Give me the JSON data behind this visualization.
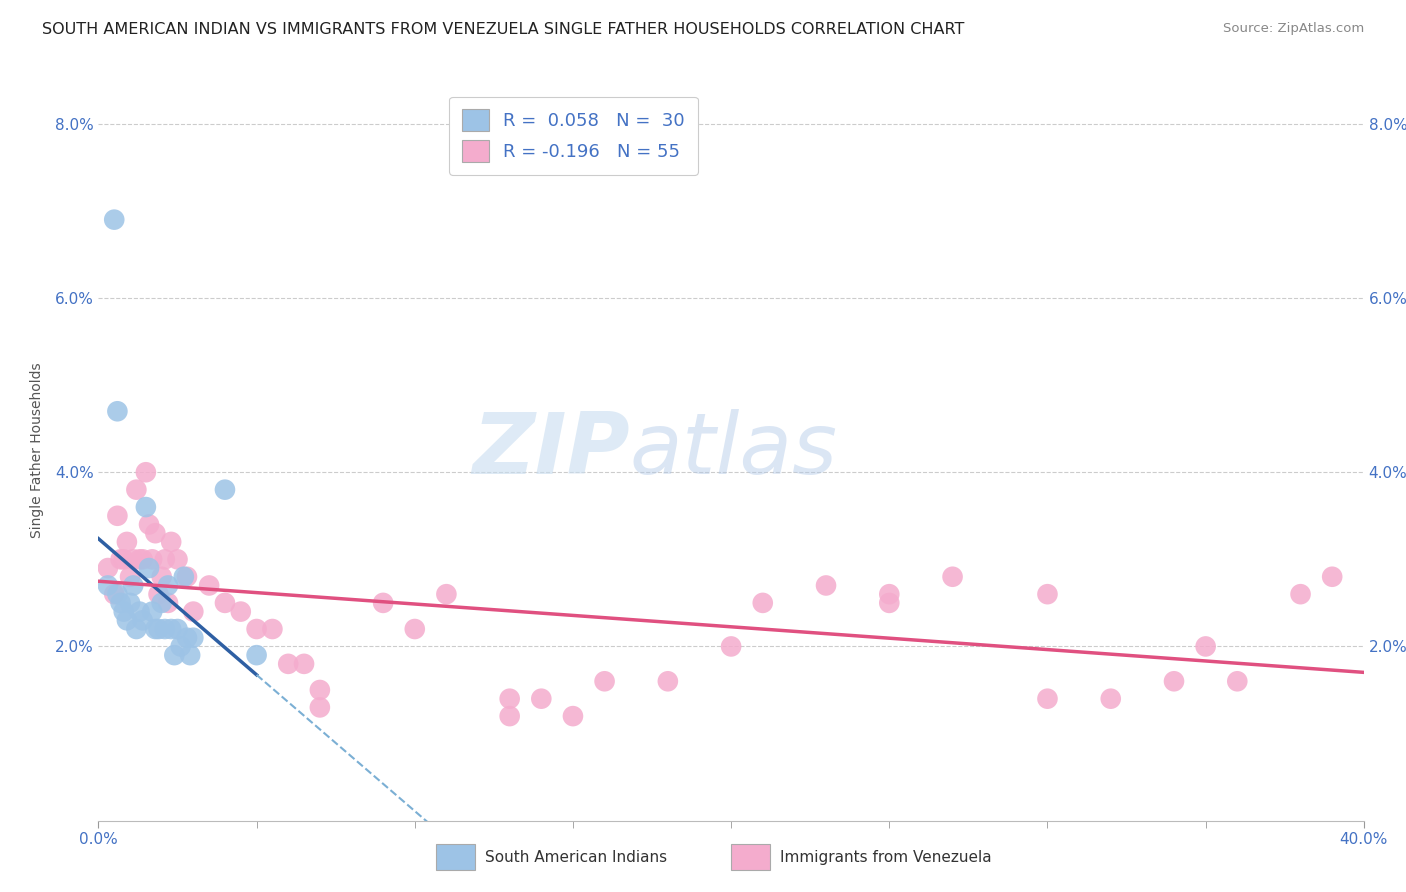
{
  "title": "SOUTH AMERICAN INDIAN VS IMMIGRANTS FROM VENEZUELA SINGLE FATHER HOUSEHOLDS CORRELATION CHART",
  "source": "Source: ZipAtlas.com",
  "ylabel": "Single Father Households",
  "xlim": [
    0.0,
    0.4
  ],
  "ylim": [
    0.0,
    0.085
  ],
  "yticks": [
    0.02,
    0.04,
    0.06,
    0.08
  ],
  "ytick_labels": [
    "2.0%",
    "4.0%",
    "6.0%",
    "8.0%"
  ],
  "xtick_left": "0.0%",
  "xtick_right": "40.0%",
  "legend_r1": "R = 0.058",
  "legend_n1": "N = 30",
  "legend_r2": "R = -0.196",
  "legend_n2": "N = 55",
  "color_blue": "#9dc3e6",
  "color_pink": "#f4accd",
  "line_blue_solid": "#2e5fa3",
  "line_blue_dashed": "#7bafd4",
  "line_pink_solid": "#e05080",
  "label1": "South American Indians",
  "label2": "Immigrants from Venezuela",
  "watermark_zip": "ZIP",
  "watermark_atlas": "atlas",
  "background": "#ffffff",
  "blue_x": [
    0.003,
    0.005,
    0.006,
    0.007,
    0.008,
    0.009,
    0.01,
    0.011,
    0.012,
    0.013,
    0.014,
    0.015,
    0.016,
    0.017,
    0.018,
    0.019,
    0.02,
    0.021,
    0.022,
    0.023,
    0.024,
    0.025,
    0.026,
    0.027,
    0.028,
    0.029,
    0.03,
    0.04,
    0.05,
    0.006
  ],
  "blue_y": [
    0.027,
    0.069,
    0.026,
    0.025,
    0.024,
    0.023,
    0.025,
    0.027,
    0.022,
    0.024,
    0.023,
    0.036,
    0.029,
    0.024,
    0.022,
    0.022,
    0.025,
    0.022,
    0.027,
    0.022,
    0.019,
    0.022,
    0.02,
    0.028,
    0.021,
    0.019,
    0.021,
    0.038,
    0.019,
    0.047
  ],
  "pink_x": [
    0.003,
    0.005,
    0.006,
    0.007,
    0.008,
    0.009,
    0.01,
    0.011,
    0.012,
    0.013,
    0.014,
    0.015,
    0.016,
    0.017,
    0.018,
    0.019,
    0.02,
    0.021,
    0.022,
    0.023,
    0.025,
    0.028,
    0.03,
    0.035,
    0.04,
    0.045,
    0.05,
    0.055,
    0.06,
    0.065,
    0.07,
    0.09,
    0.1,
    0.11,
    0.13,
    0.14,
    0.15,
    0.16,
    0.18,
    0.2,
    0.21,
    0.23,
    0.25,
    0.27,
    0.3,
    0.32,
    0.34,
    0.36,
    0.39,
    0.38,
    0.35,
    0.3,
    0.25,
    0.13,
    0.07
  ],
  "pink_y": [
    0.029,
    0.026,
    0.035,
    0.03,
    0.03,
    0.032,
    0.028,
    0.03,
    0.038,
    0.03,
    0.03,
    0.04,
    0.034,
    0.03,
    0.033,
    0.026,
    0.028,
    0.03,
    0.025,
    0.032,
    0.03,
    0.028,
    0.024,
    0.027,
    0.025,
    0.024,
    0.022,
    0.022,
    0.018,
    0.018,
    0.015,
    0.025,
    0.022,
    0.026,
    0.014,
    0.014,
    0.012,
    0.016,
    0.016,
    0.02,
    0.025,
    0.027,
    0.025,
    0.028,
    0.014,
    0.014,
    0.016,
    0.016,
    0.028,
    0.026,
    0.02,
    0.026,
    0.026,
    0.012,
    0.013
  ],
  "title_fontsize": 11.5,
  "axis_label_fontsize": 10,
  "tick_fontsize": 11,
  "legend_fontsize": 13,
  "source_fontsize": 9.5
}
